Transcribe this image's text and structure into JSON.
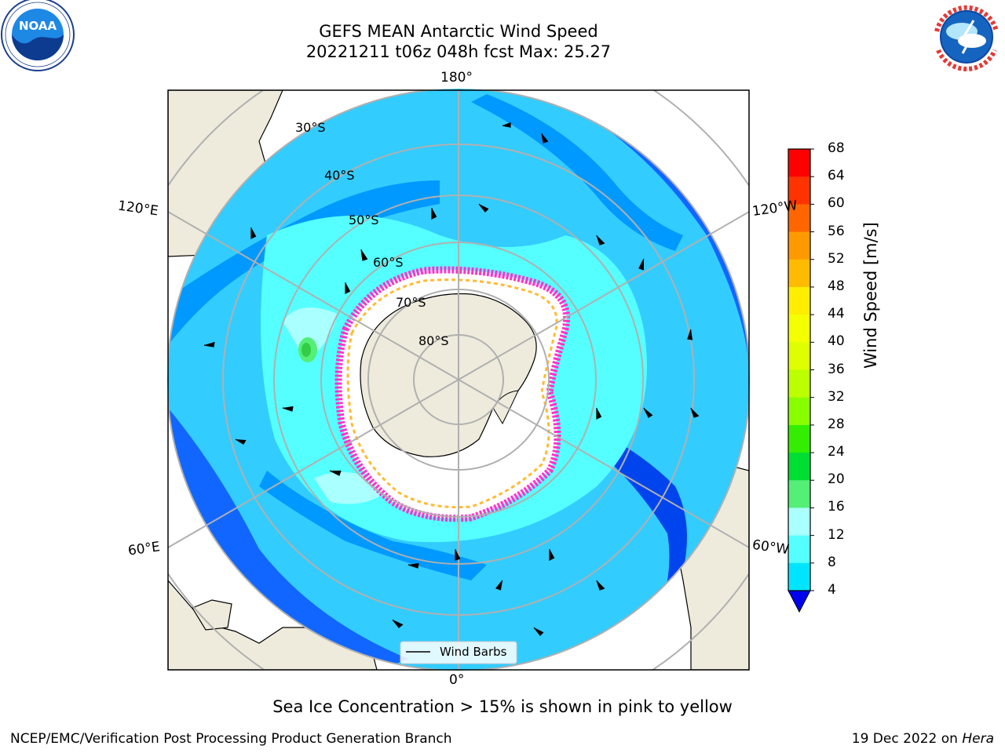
{
  "title": {
    "line1": "GEFS MEAN Antarctic Wind Speed",
    "line2": "20221211 t06z 048h fcst   Max: 25.27"
  },
  "logos": {
    "left": {
      "name": "NOAA",
      "ring_text": "NATIONAL OCEANIC AND ATMOSPHERIC ADMINISTRATION · U.S. DEPARTMENT OF COMMERCE"
    },
    "right": {
      "ring_text": "NATIONAL WEATHER SERVICE"
    }
  },
  "map": {
    "lon_labels": {
      "top": "180°",
      "bottom": "0°",
      "left_upper": "120°E",
      "left_lower": "60°E",
      "right_upper": "120°W",
      "right_lower": "60°W"
    },
    "lat_labels": [
      "30°S",
      "40°S",
      "50°S",
      "60°S",
      "70°S",
      "80°S"
    ],
    "legend": "Wind Barbs",
    "colors": {
      "land": "#eeebdc",
      "ice": "#ffffff",
      "ice_edge": "#ff33cc"
    }
  },
  "colorbar": {
    "label": "Wind Speed [m/s]",
    "ticks": [
      "68",
      "64",
      "60",
      "56",
      "52",
      "48",
      "44",
      "40",
      "36",
      "32",
      "28",
      "24",
      "20",
      "16",
      "12",
      "8",
      "4"
    ],
    "colors": [
      "#ff0000",
      "#ff3300",
      "#ff6600",
      "#ff9900",
      "#ffbb00",
      "#ffee00",
      "#f4ff00",
      "#ddff00",
      "#bbff00",
      "#88ff00",
      "#33ee00",
      "#00dd33",
      "#55ee77",
      "#aaffff",
      "#55ffff",
      "#00e5ff",
      "#0077ff"
    ],
    "under_color": "#0000ee"
  },
  "note": "Sea Ice Concentration > 15% is shown in pink to yellow",
  "footer": {
    "left": "NCEP/EMC/Verification Post Processing Product Generation Branch",
    "right_prefix": "19 Dec 2022 on ",
    "right_italic": "Hera"
  }
}
